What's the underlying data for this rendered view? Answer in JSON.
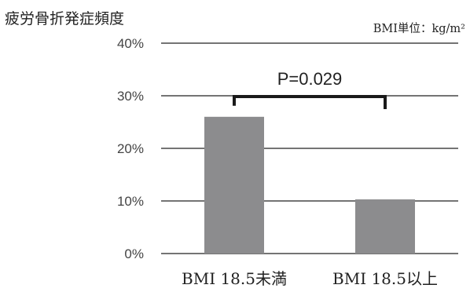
{
  "chart_data": {
    "type": "bar",
    "ylabel": "疲労骨折発症頻度",
    "unit_note": "BMI単位：kg/m²",
    "categories": [
      "BMI 18.5未満",
      "BMI 18.5以上"
    ],
    "values": [
      26,
      10.3
    ],
    "ylim": [
      0,
      40
    ],
    "yticks": [
      0,
      10,
      20,
      30,
      40
    ],
    "ytick_labels": [
      "0%",
      "10%",
      "20%",
      "30%",
      "40%"
    ],
    "grid": true,
    "annotation": "P=0.029",
    "colors": {
      "bar": "#8c8c8e",
      "grid": "#222222",
      "bracket": "#1a1a1a",
      "text": "#222222"
    }
  }
}
